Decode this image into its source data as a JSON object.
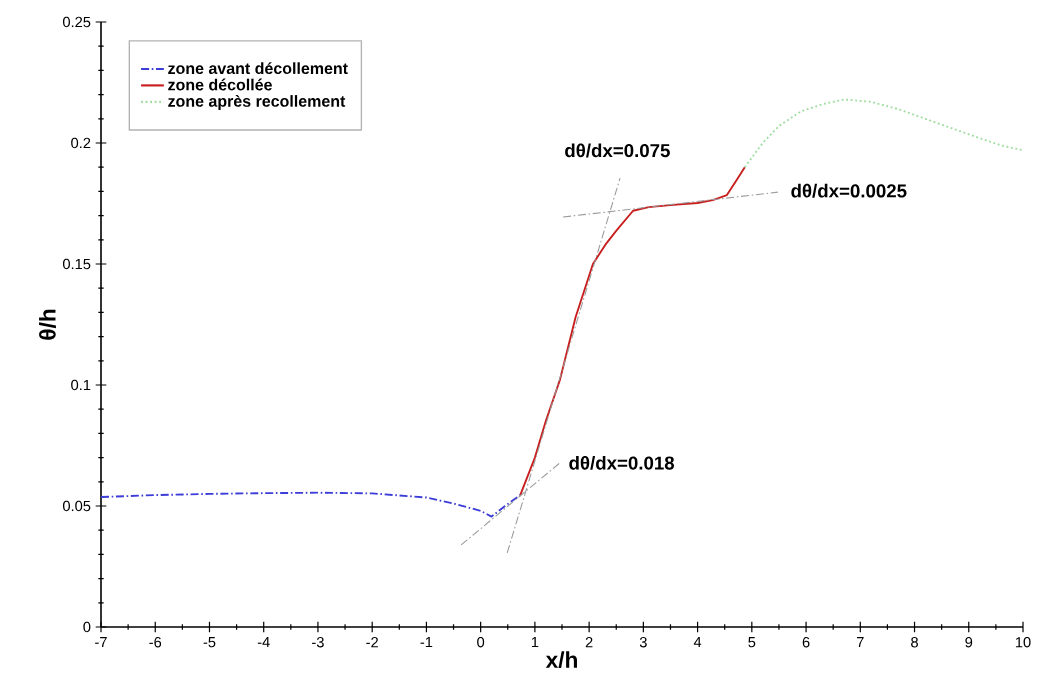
{
  "chart_data": {
    "type": "line",
    "xlabel": "x/h",
    "ylabel": "θ/h",
    "xlim": [
      -7,
      10
    ],
    "ylim": [
      0,
      0.25
    ],
    "xticks": [
      -7,
      -6,
      -5,
      -4,
      -3,
      -2,
      -1,
      0,
      1,
      2,
      3,
      4,
      5,
      6,
      7,
      8,
      9,
      10
    ],
    "yticks": [
      0,
      0.05,
      0.1,
      0.15,
      0.2,
      0.25
    ],
    "legend": "top left",
    "grid": false,
    "series": [
      {
        "name": "zone avant décollement",
        "color": "#3c3cd8",
        "line_style": "dashed",
        "x": [
          -7,
          -6,
          -5,
          -4,
          -3,
          -2,
          -1,
          -0.5,
          0,
          0.2,
          0.45,
          0.73
        ],
        "values": [
          0.0537,
          0.0545,
          0.055,
          0.0553,
          0.0555,
          0.0552,
          0.0535,
          0.051,
          0.048,
          0.0456,
          0.05,
          0.0545
        ]
      },
      {
        "name": "zone décollée",
        "color": "#c81e1e",
        "line_style": "solid",
        "x": [
          0.73,
          1.0,
          1.2,
          1.46,
          1.75,
          2.07,
          2.3,
          2.51,
          2.81,
          3.1,
          3.55,
          4.0,
          4.28,
          4.54,
          4.7,
          4.87
        ],
        "values": [
          0.0545,
          0.07,
          0.085,
          0.102,
          0.128,
          0.15,
          0.158,
          0.164,
          0.172,
          0.1735,
          0.1744,
          0.1752,
          0.1764,
          0.1785,
          0.184,
          0.19
        ]
      },
      {
        "name": "zone après recollement",
        "color": "#9fdc9f",
        "line_style": "dotted",
        "x": [
          4.87,
          5.2,
          5.5,
          5.9,
          6.3,
          6.7,
          7.2,
          7.7,
          8.2,
          8.7,
          9.2,
          9.6,
          10
        ],
        "values": [
          0.19,
          0.2,
          0.207,
          0.213,
          0.216,
          0.218,
          0.217,
          0.214,
          0.21,
          0.206,
          0.202,
          0.199,
          0.197
        ]
      },
      {
        "color": "#9a9a9a",
        "line_style": "dashed",
        "x": [
          -0.36,
          1.46
        ],
        "values": [
          0.0339,
          0.0678
        ]
      },
      {
        "color": "#9a9a9a",
        "line_style": "dashed",
        "x": [
          0.49,
          2.57
        ],
        "values": [
          0.0306,
          0.1855
        ]
      },
      {
        "color": "#9a9a9a",
        "line_style": "dashed",
        "x": [
          1.52,
          5.48
        ],
        "values": [
          0.1694,
          0.1797
        ]
      }
    ],
    "annotations": [
      "dθ/dx=0.018",
      "dθ/dx=0.075",
      "dθ/dx=0.0025"
    ]
  }
}
